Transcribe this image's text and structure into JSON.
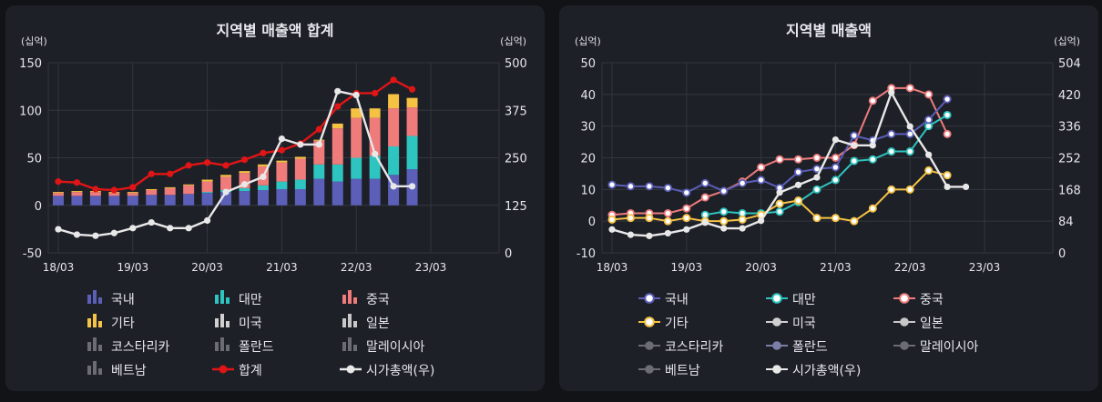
{
  "colors": {
    "domestic": "#5b5fb8",
    "taiwan": "#2ec4bf",
    "china": "#ef7b7b",
    "other": "#f5c243",
    "usa": "#d0d0d0",
    "japan": "#c8c8c8",
    "gray": "#6b6d72",
    "poland": "#7b7fa8",
    "total": "#e01515",
    "mcap": "#e8e8e8",
    "grid": "#34363e"
  },
  "chart_data": [
    {
      "type": "bar",
      "title": "지역별 매출액 합계",
      "ylabel": "(십억)",
      "y2label": "(십억)",
      "ylim": [
        -50,
        150
      ],
      "yticks": [
        -50,
        0,
        50,
        100,
        150
      ],
      "y2lim": [
        0,
        500
      ],
      "y2ticks": [
        0,
        125,
        250,
        375,
        500
      ],
      "x_ticks": [
        "18/03",
        "19/03",
        "20/03",
        "21/03",
        "22/03",
        "23/03"
      ],
      "series": [
        {
          "name": "국내",
          "values": [
            10,
            10,
            10,
            10,
            10,
            11,
            11,
            12,
            13,
            14,
            15,
            16,
            17,
            17,
            28,
            25,
            28,
            28,
            32,
            38
          ]
        },
        {
          "name": "대만",
          "values": [
            0,
            0,
            0,
            0,
            0,
            0,
            0,
            0,
            1,
            2,
            3,
            5,
            8,
            10,
            15,
            18,
            22,
            24,
            30,
            35
          ]
        },
        {
          "name": "중국",
          "values": [
            3,
            4,
            4,
            3,
            3,
            5,
            7,
            9,
            11,
            14,
            16,
            20,
            20,
            22,
            25,
            38,
            42,
            40,
            40,
            30
          ]
        },
        {
          "name": "기타",
          "values": [
            1,
            1,
            1,
            1,
            1,
            1,
            1,
            1,
            2,
            2,
            2,
            2,
            2,
            2,
            1,
            5,
            10,
            10,
            15,
            10
          ]
        },
        {
          "name": "미국",
          "values": []
        },
        {
          "name": "일본",
          "values": []
        },
        {
          "name": "코스타리카",
          "values": []
        },
        {
          "name": "폴란드",
          "values": []
        },
        {
          "name": "말레이시아",
          "values": []
        },
        {
          "name": "베트남",
          "values": []
        },
        {
          "name": "합계",
          "axis": "left",
          "values": [
            25,
            24,
            17,
            16,
            19,
            33,
            33,
            42,
            45,
            42,
            48,
            55,
            58,
            65,
            80,
            104,
            118,
            118,
            132,
            122
          ]
        },
        {
          "name": "시가총액(우)",
          "axis": "right",
          "values": [
            62,
            48,
            45,
            52,
            65,
            80,
            65,
            65,
            85,
            160,
            180,
            200,
            300,
            285,
            285,
            425,
            415,
            260,
            175,
            175
          ]
        }
      ]
    },
    {
      "type": "line",
      "title": "지역별 매출액",
      "ylabel": "(십억)",
      "y2label": "(십억)",
      "ylim": [
        -10,
        50
      ],
      "yticks": [
        -10,
        0,
        10,
        20,
        30,
        40,
        50
      ],
      "y2lim": [
        0,
        504
      ],
      "y2ticks": [
        0,
        84,
        168,
        252,
        336,
        420,
        504
      ],
      "x_ticks": [
        "18/03",
        "19/03",
        "20/03",
        "21/03",
        "22/03",
        "23/03"
      ],
      "series": [
        {
          "name": "국내",
          "axis": "left",
          "values": [
            11.5,
            11,
            11,
            10.5,
            9,
            12,
            9.5,
            12,
            13,
            10.5,
            15.5,
            16.5,
            17,
            27,
            25.5,
            27.5,
            27.5,
            32,
            38.5
          ]
        },
        {
          "name": "대만",
          "axis": "left",
          "values": [
            null,
            null,
            null,
            null,
            null,
            2,
            3,
            2.5,
            2.5,
            3,
            6,
            10,
            13,
            19,
            19.5,
            22,
            22,
            30,
            33.5
          ]
        },
        {
          "name": "중국",
          "axis": "left",
          "values": [
            2,
            2.5,
            2.5,
            2.5,
            4,
            7.5,
            9.5,
            12.5,
            17,
            19.5,
            19.5,
            20,
            20,
            24,
            38,
            42,
            42,
            40,
            27.5
          ]
        },
        {
          "name": "기타",
          "axis": "left",
          "values": [
            0.5,
            1,
            1,
            0,
            1,
            0,
            0,
            0.5,
            2,
            5.5,
            6.5,
            1,
            1,
            0,
            4,
            10,
            10,
            16,
            14.5
          ]
        },
        {
          "name": "미국",
          "values": []
        },
        {
          "name": "일본",
          "values": []
        },
        {
          "name": "코스타리카",
          "values": []
        },
        {
          "name": "폴란드",
          "values": []
        },
        {
          "name": "말레이시아",
          "values": []
        },
        {
          "name": "베트남",
          "values": []
        },
        {
          "name": "시가총액(우)",
          "axis": "right",
          "values": [
            62,
            48,
            45,
            52,
            62,
            80,
            65,
            65,
            85,
            160,
            180,
            200,
            300,
            285,
            285,
            425,
            335,
            260,
            175,
            175
          ]
        }
      ]
    }
  ]
}
